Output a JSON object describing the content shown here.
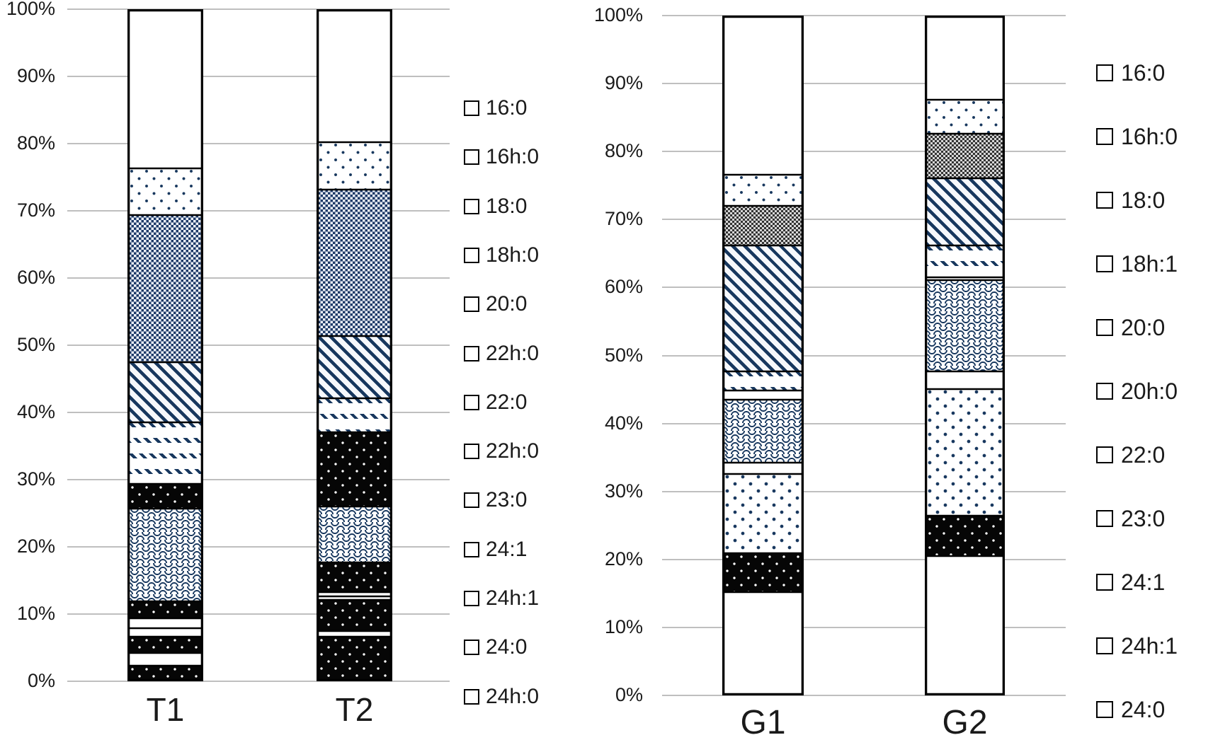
{
  "figure": {
    "background": "#ffffff",
    "pattern_navy": "#17375e",
    "pattern_black": "#060606",
    "checker_gray": "#333333",
    "grid_color": "#bfbfbf",
    "text_color": "#1a1a1a"
  },
  "chart_data": [
    {
      "id": "left",
      "type": "bar",
      "stacking": "percent",
      "title": "",
      "xlabel": "",
      "ylabel": "",
      "ylim": [
        0,
        100
      ],
      "grid": true,
      "legend_position": "right",
      "categories": [
        "T1",
        "T2"
      ],
      "y_axis": {
        "ticks": [
          "0%",
          "10%",
          "20%",
          "30%",
          "40%",
          "50%",
          "60%",
          "70%",
          "80%",
          "90%",
          "100%"
        ]
      },
      "series": [
        {
          "name": "16:0",
          "pattern": "white",
          "values": [
            23.6,
            19.7
          ]
        },
        {
          "name": "16h:0",
          "pattern": "dots",
          "values": [
            6.9,
            7.0
          ]
        },
        {
          "name": "18:0",
          "pattern": "checker-blue",
          "values": [
            22.0,
            21.9
          ]
        },
        {
          "name": "18h:0",
          "pattern": "diagonal",
          "values": [
            9.0,
            9.3
          ]
        },
        {
          "name": "20:0",
          "pattern": "dash-rows",
          "values": [
            9.2,
            5.1
          ]
        },
        {
          "name": "22h:0",
          "pattern": "black-dots",
          "values": [
            3.7,
            11.1
          ]
        },
        {
          "name": "22:0",
          "pattern": "waves",
          "values": [
            13.9,
            8.4
          ]
        },
        {
          "name": "22h:0",
          "pattern": "black-dots",
          "values": [
            2.5,
            4.4
          ]
        },
        {
          "name": "23:0",
          "pattern": "white",
          "values": [
            1.5,
            0.6
          ]
        },
        {
          "name": "24:1",
          "pattern": "white",
          "values": [
            1.2,
            0.6
          ]
        },
        {
          "name": "24h:1",
          "pattern": "black-dots",
          "values": [
            2.5,
            4.6
          ]
        },
        {
          "name": "24:0",
          "pattern": "white",
          "values": [
            1.9,
            0.8
          ]
        },
        {
          "name": "24h:0",
          "pattern": "black-dots",
          "values": [
            2.1,
            6.5
          ]
        }
      ]
    },
    {
      "id": "right",
      "type": "bar",
      "stacking": "percent",
      "title": "",
      "xlabel": "",
      "ylabel": "",
      "ylim": [
        0,
        100
      ],
      "grid": true,
      "legend_position": "right",
      "categories": [
        "G1",
        "G2"
      ],
      "y_axis": {
        "ticks": [
          "0%",
          "10%",
          "20%",
          "30%",
          "40%",
          "50%",
          "60%",
          "70%",
          "80%",
          "90%",
          "100%"
        ]
      },
      "series": [
        {
          "name": "16:0",
          "pattern": "white",
          "values": [
            23.3,
            12.2
          ]
        },
        {
          "name": "16h:0",
          "pattern": "dots",
          "values": [
            4.6,
            5.0
          ]
        },
        {
          "name": "18:0",
          "pattern": "checker-gray",
          "values": [
            5.9,
            6.6
          ]
        },
        {
          "name": "18h:1",
          "pattern": "diagonal",
          "values": [
            18.6,
            9.9
          ]
        },
        {
          "name": "20:0",
          "pattern": "dash-rows",
          "values": [
            2.8,
            4.8
          ]
        },
        {
          "name": "20h:0",
          "pattern": "white",
          "values": [
            1.3,
            0.4
          ]
        },
        {
          "name": "22:0",
          "pattern": "waves",
          "values": [
            9.3,
            13.5
          ]
        },
        {
          "name": "23:0",
          "pattern": "white",
          "values": [
            1.7,
            2.6
          ]
        },
        {
          "name": "24:1",
          "pattern": "chevron-dots",
          "values": [
            11.7,
            18.7
          ]
        },
        {
          "name": "24h:1",
          "pattern": "black-dots",
          "values": [
            5.7,
            5.9
          ]
        },
        {
          "name": "24:0",
          "pattern": "white",
          "values": [
            15.1,
            20.4
          ]
        }
      ]
    }
  ]
}
